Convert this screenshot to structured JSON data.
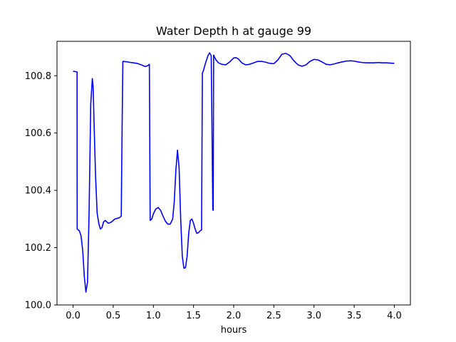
{
  "chart_data": {
    "type": "line",
    "title": "Water Depth h at gauge 99",
    "xlabel": "hours",
    "ylabel": "",
    "xlim": [
      -0.2,
      4.2
    ],
    "ylim": [
      100.0,
      100.92
    ],
    "x_ticks": [
      0.0,
      0.5,
      1.0,
      1.5,
      2.0,
      2.5,
      3.0,
      3.5,
      4.0
    ],
    "x_tick_labels": [
      "0.0",
      "0.5",
      "1.0",
      "1.5",
      "2.0",
      "2.5",
      "3.0",
      "3.5",
      "4.0"
    ],
    "y_ticks": [
      100.0,
      100.2,
      100.4,
      100.6,
      100.8
    ],
    "y_tick_labels": [
      "100.0",
      "100.2",
      "100.4",
      "100.6",
      "100.8"
    ],
    "grid": false,
    "legend": "none",
    "series": [
      {
        "color": "#0000ff",
        "x": [
          0.0,
          0.02,
          0.05,
          0.051,
          0.08,
          0.1,
          0.12,
          0.14,
          0.16,
          0.18,
          0.2,
          0.22,
          0.24,
          0.25,
          0.26,
          0.28,
          0.3,
          0.32,
          0.34,
          0.36,
          0.38,
          0.4,
          0.42,
          0.44,
          0.46,
          0.48,
          0.5,
          0.52,
          0.55,
          0.58,
          0.6,
          0.61,
          0.62,
          0.66,
          0.7,
          0.75,
          0.8,
          0.85,
          0.9,
          0.93,
          0.95,
          0.96,
          0.98,
          1.0,
          1.03,
          1.06,
          1.09,
          1.12,
          1.15,
          1.18,
          1.21,
          1.24,
          1.26,
          1.28,
          1.3,
          1.32,
          1.34,
          1.36,
          1.38,
          1.4,
          1.42,
          1.44,
          1.46,
          1.48,
          1.5,
          1.52,
          1.54,
          1.56,
          1.58,
          1.6,
          1.61,
          1.62,
          1.65,
          1.68,
          1.7,
          1.72,
          1.74,
          1.745,
          1.75,
          1.755,
          1.76,
          1.78,
          1.81,
          1.85,
          1.9,
          1.95,
          2.0,
          2.03,
          2.06,
          2.1,
          2.15,
          2.2,
          2.25,
          2.3,
          2.35,
          2.4,
          2.45,
          2.5,
          2.55,
          2.6,
          2.65,
          2.7,
          2.75,
          2.8,
          2.85,
          2.9,
          2.95,
          3.0,
          3.05,
          3.1,
          3.15,
          3.2,
          3.25,
          3.3,
          3.35,
          3.4,
          3.45,
          3.5,
          3.55,
          3.6,
          3.65,
          3.7,
          3.75,
          3.8,
          3.85,
          3.9,
          3.95,
          4.0
        ],
        "y": [
          100.815,
          100.815,
          100.813,
          100.265,
          100.258,
          100.24,
          100.19,
          100.1,
          100.045,
          100.08,
          100.33,
          100.7,
          100.79,
          100.76,
          100.65,
          100.45,
          100.32,
          100.285,
          100.265,
          100.27,
          100.29,
          100.295,
          100.29,
          100.285,
          100.287,
          100.29,
          100.295,
          100.3,
          100.302,
          100.305,
          100.31,
          100.6,
          100.85,
          100.849,
          100.847,
          100.845,
          100.843,
          100.838,
          100.832,
          100.835,
          100.84,
          100.295,
          100.3,
          100.318,
          100.335,
          100.34,
          100.33,
          100.31,
          100.292,
          100.282,
          100.282,
          100.3,
          100.36,
          100.47,
          100.54,
          100.48,
          100.3,
          100.17,
          100.128,
          100.13,
          100.17,
          100.25,
          100.295,
          100.3,
          100.285,
          100.265,
          100.25,
          100.252,
          100.258,
          100.262,
          100.81,
          100.815,
          100.845,
          100.87,
          100.88,
          100.87,
          100.333,
          100.33,
          100.872,
          100.87,
          100.865,
          100.855,
          100.845,
          100.84,
          100.838,
          100.848,
          100.862,
          100.863,
          100.858,
          100.845,
          100.838,
          100.84,
          100.845,
          100.85,
          100.85,
          100.847,
          100.843,
          100.842,
          100.855,
          100.875,
          100.878,
          100.87,
          100.852,
          100.838,
          100.833,
          100.838,
          100.85,
          100.857,
          100.855,
          100.848,
          100.84,
          100.838,
          100.841,
          100.845,
          100.848,
          100.851,
          100.852,
          100.851,
          100.848,
          100.846,
          100.845,
          100.845,
          100.845,
          100.846,
          100.845,
          100.845,
          100.844,
          100.843
        ]
      }
    ]
  }
}
